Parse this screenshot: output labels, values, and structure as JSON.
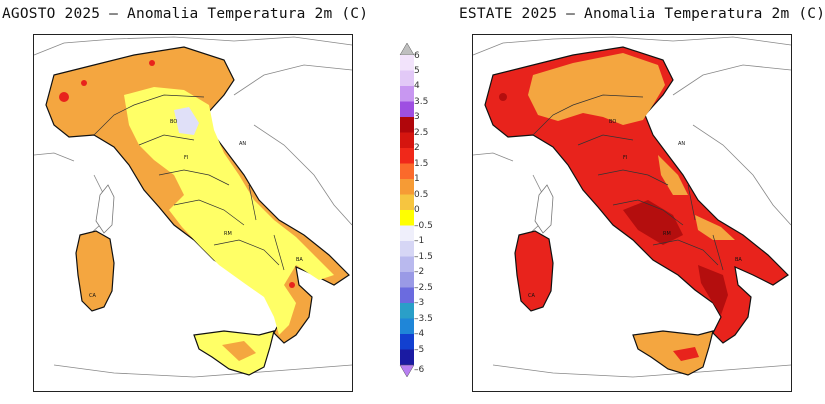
{
  "panels": [
    {
      "title": "AGOSTO 2025 – Anomalia Temperatura 2m (C)",
      "fill_main": "#f4a640",
      "fill_secondary": "#ffff66",
      "fill_hot": "#e8231c"
    },
    {
      "title": "ESTATE 2025 – Anomalia Temperatura 2m (C)",
      "fill_main": "#e8231c",
      "fill_secondary": "#f4a640",
      "fill_hot": "#b40e0e"
    }
  ],
  "colorbar": {
    "ticks": [
      "6",
      "5",
      "4",
      "3.5",
      "3",
      "2.5",
      "2",
      "1.5",
      "1",
      "0.5",
      "0",
      "–0.5",
      "–1",
      "–1.5",
      "–2",
      "–2.5",
      "–3",
      "–3.5",
      "–4",
      "–5",
      "–6"
    ],
    "colors": [
      "#f2e3fb",
      "#e2c9f7",
      "#c897f1",
      "#9e4fe2",
      "#b0060b",
      "#d5150f",
      "#f0281a",
      "#fb6a2b",
      "#f69b35",
      "#f6c540",
      "#ffff00",
      "#efeffb",
      "#d6d6f5",
      "#b9b9ee",
      "#9a9ae6",
      "#6b6bdf",
      "#2a9fc8",
      "#1f86d8",
      "#1240d0",
      "#1a1aa2"
    ],
    "top_arrow_color": "#bfbfbf",
    "bottom_arrow_color": "#b87ff2"
  },
  "labels": [
    "BO",
    "AN",
    "RM",
    "FI",
    "BA",
    "CA"
  ]
}
